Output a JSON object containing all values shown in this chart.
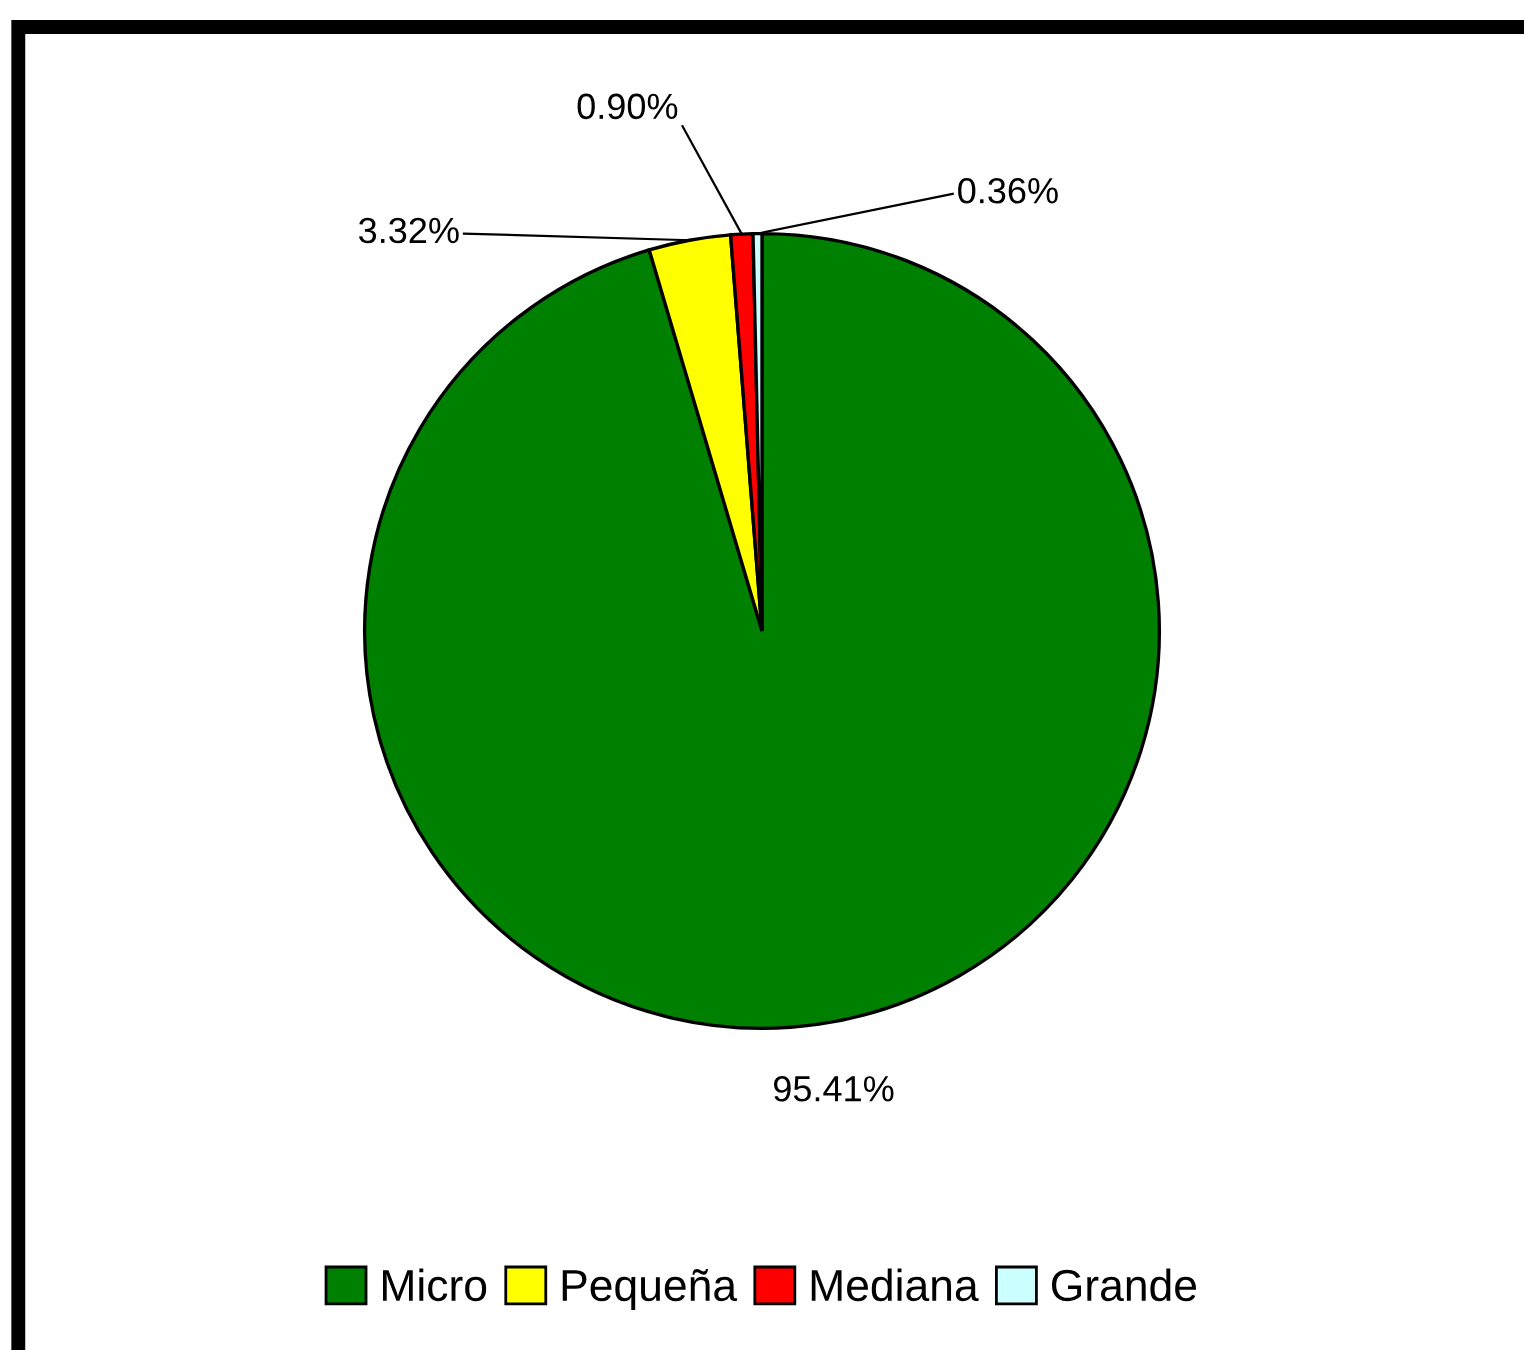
{
  "chart_data": {
    "type": "pie",
    "categories": [
      "Micro",
      "Pequeña",
      "Mediana",
      "Grande"
    ],
    "values": [
      95.41,
      3.32,
      0.9,
      0.36
    ],
    "colors": [
      "#008000",
      "#ffff00",
      "#ff0000",
      "#ccffff"
    ],
    "value_labels": [
      "95.41%",
      "3.32%",
      "0.90%",
      "0.36%"
    ],
    "legend": "bottom"
  }
}
